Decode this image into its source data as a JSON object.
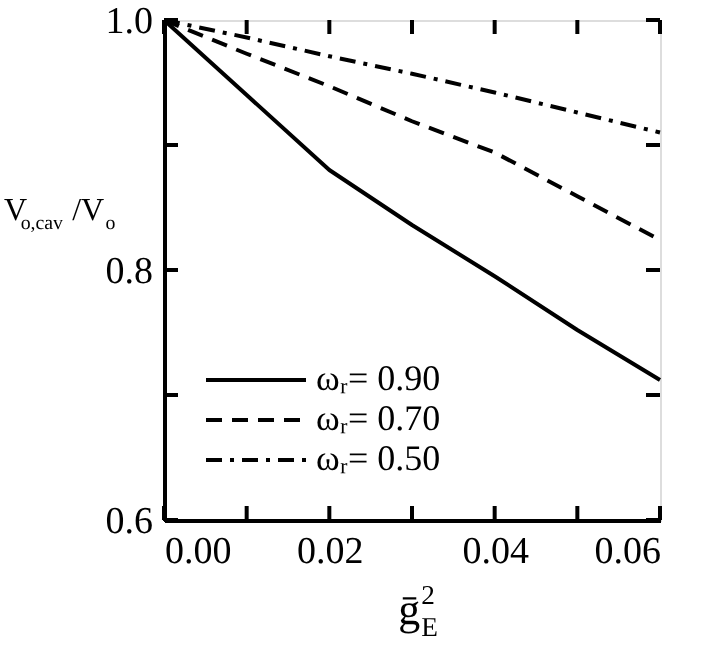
{
  "chart_data": {
    "type": "line",
    "x": [
      0.0,
      0.01,
      0.02,
      0.03,
      0.04,
      0.05,
      0.06
    ],
    "series": [
      {
        "name": "ωᵣ= 0.90",
        "color": "#000000",
        "line_style": "solid",
        "values": [
          1.0,
          0.94,
          0.88,
          0.836,
          0.795,
          0.752,
          0.712
        ]
      },
      {
        "name": "ωᵣ= 0.70",
        "color": "#000000",
        "line_style": "dashed",
        "values": [
          1.0,
          0.973,
          0.947,
          0.919,
          0.894,
          0.859,
          0.824
        ]
      },
      {
        "name": "ωᵣ= 0.50",
        "color": "#000000",
        "line_style": "dashdot",
        "values": [
          1.0,
          0.986,
          0.971,
          0.957,
          0.942,
          0.926,
          0.91
        ]
      }
    ],
    "xlabel": "ḡ$_{E}$$^{2}$",
    "ylabel": "V$_{o,cav}$/V$_{o}$",
    "xlim": [
      0.0,
      0.06
    ],
    "ylim": [
      0.6,
      1.0
    ],
    "xticks": [
      {
        "value": 0.0,
        "label": "0.00"
      },
      {
        "value": 0.01,
        "label": null
      },
      {
        "value": 0.02,
        "label": "0.02"
      },
      {
        "value": 0.03,
        "label": null
      },
      {
        "value": 0.04,
        "label": "0.04"
      },
      {
        "value": 0.05,
        "label": null
      },
      {
        "value": 0.06,
        "label": "0.06"
      }
    ],
    "yticks": [
      0.6,
      {
        "value": 0.7,
        "label": null
      },
      0.8,
      {
        "value": 0.9,
        "label": null
      },
      {
        "value": 1.0,
        "label": "1.0"
      }
    ],
    "grid": false,
    "legend": "bottom"
  }
}
